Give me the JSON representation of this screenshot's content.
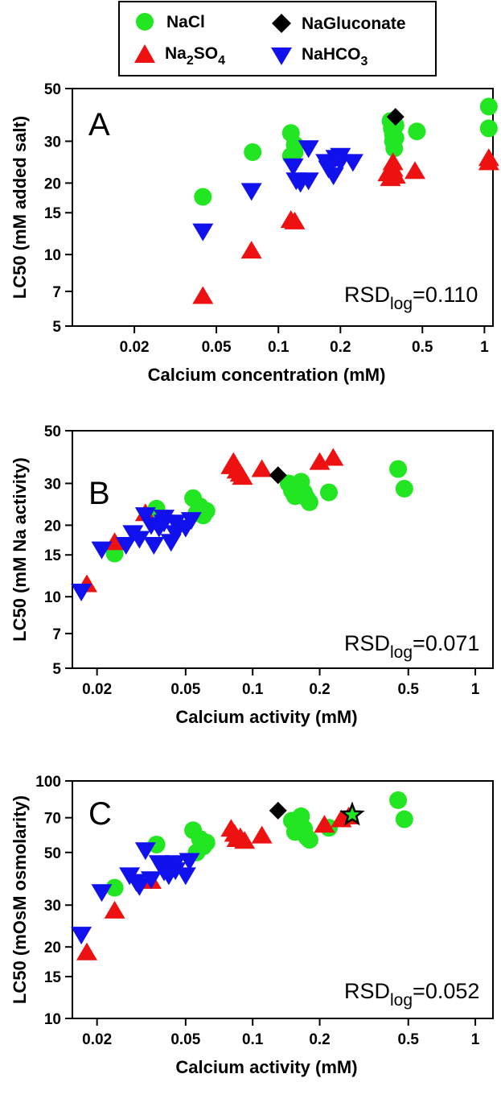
{
  "legend": {
    "entries": [
      {
        "key": "nacl",
        "label": "NaCl",
        "color": "#22e622",
        "marker": "circle"
      },
      {
        "key": "na2so4",
        "label_parts": [
          "Na",
          "2",
          "SO",
          "4"
        ],
        "color": "#ee1111",
        "marker": "triangle-up"
      },
      {
        "key": "nagluconate",
        "label": "NaGluconate",
        "color": "#000000",
        "marker": "diamond"
      },
      {
        "key": "nahco3",
        "label_parts": [
          "NaHCO",
          "3"
        ],
        "color": "#1111ee",
        "marker": "triangle-down"
      }
    ]
  },
  "chart_data": [
    {
      "type": "scatter",
      "panel_letter": "A",
      "xlabel": "Calcium concentration (mM)",
      "ylabel": "LC50 (mM added salt)",
      "x_scale": "log",
      "y_scale": "log",
      "xlim": [
        0.01,
        1.1
      ],
      "ylim": [
        5,
        50
      ],
      "x_ticks": [
        "0.02",
        "0.05",
        "0.1",
        "0.2",
        "0.5",
        "1"
      ],
      "y_ticks": [
        "5",
        "7",
        "10",
        "15",
        "20",
        "30",
        "50"
      ],
      "annotation": {
        "base": "RSD",
        "sub": "log",
        "value": "=0.110"
      },
      "series": [
        {
          "name": "NaCl",
          "marker": "circle",
          "color": "#22e622",
          "points": [
            [
              0.043,
              17.5
            ],
            [
              0.075,
              27
            ],
            [
              0.115,
              26
            ],
            [
              0.115,
              32.5
            ],
            [
              0.12,
              29
            ],
            [
              0.12,
              27
            ],
            [
              0.35,
              36.5
            ],
            [
              0.355,
              34
            ],
            [
              0.36,
              32
            ],
            [
              0.36,
              30
            ],
            [
              0.365,
              28
            ],
            [
              0.37,
              31
            ],
            [
              0.37,
              35
            ],
            [
              0.47,
              33
            ],
            [
              1.05,
              42
            ],
            [
              1.05,
              34
            ]
          ]
        },
        {
          "name": "Na2SO4",
          "marker": "triangle-up",
          "color": "#ee1111",
          "points": [
            [
              0.043,
              6.7
            ],
            [
              0.074,
              10.4
            ],
            [
              0.115,
              14
            ],
            [
              0.12,
              13.8
            ],
            [
              0.34,
              22
            ],
            [
              0.35,
              21
            ],
            [
              0.36,
              23
            ],
            [
              0.36,
              24.5
            ],
            [
              0.37,
              21.5
            ],
            [
              0.46,
              22.5
            ],
            [
              1.05,
              25.5
            ],
            [
              1.05,
              24.5
            ]
          ]
        },
        {
          "name": "NaGluconate",
          "marker": "diamond",
          "color": "#000000",
          "points": [
            [
              0.37,
              38
            ]
          ]
        },
        {
          "name": "NaHCO3",
          "marker": "triangle-down",
          "color": "#1111ee",
          "points": [
            [
              0.043,
              12.5
            ],
            [
              0.074,
              18.5
            ],
            [
              0.118,
              23.5
            ],
            [
              0.122,
              20.5
            ],
            [
              0.128,
              20
            ],
            [
              0.14,
              20.5
            ],
            [
              0.14,
              28
            ],
            [
              0.17,
              24.5
            ],
            [
              0.175,
              23
            ],
            [
              0.185,
              21.5
            ],
            [
              0.19,
              25.5
            ],
            [
              0.2,
              26
            ],
            [
              0.2,
              24.5
            ],
            [
              0.23,
              24.5
            ]
          ]
        }
      ]
    },
    {
      "type": "scatter",
      "panel_letter": "B",
      "xlabel": "Calcium activity (mM)",
      "ylabel": "LC50 (mM Na activity)",
      "x_scale": "log",
      "y_scale": "log",
      "xlim": [
        0.0155,
        1.2
      ],
      "ylim": [
        5,
        50
      ],
      "x_ticks": [
        "0.02",
        "0.05",
        "0.1",
        "0.2",
        "0.5",
        "1"
      ],
      "y_ticks": [
        "5",
        "7",
        "10",
        "15",
        "20",
        "30",
        "50"
      ],
      "annotation": {
        "base": "RSD",
        "sub": "log",
        "value": "=0.071"
      },
      "series": [
        {
          "name": "NaCl",
          "marker": "circle",
          "color": "#22e622",
          "points": [
            [
              0.024,
              15.2
            ],
            [
              0.037,
              23.5
            ],
            [
              0.054,
              26
            ],
            [
              0.056,
              22.5
            ],
            [
              0.058,
              24
            ],
            [
              0.06,
              22
            ],
            [
              0.062,
              23
            ],
            [
              0.145,
              30
            ],
            [
              0.15,
              28
            ],
            [
              0.155,
              26.5
            ],
            [
              0.16,
              29
            ],
            [
              0.165,
              30.5
            ],
            [
              0.17,
              27.5
            ],
            [
              0.175,
              26
            ],
            [
              0.18,
              25
            ],
            [
              0.22,
              27.5
            ],
            [
              0.45,
              34.5
            ],
            [
              0.48,
              28.5
            ]
          ]
        },
        {
          "name": "Na2SO4",
          "marker": "triangle-up",
          "color": "#ee1111",
          "points": [
            [
              0.018,
              11.3
            ],
            [
              0.024,
              17
            ],
            [
              0.033,
              22.5
            ],
            [
              0.08,
              35.5
            ],
            [
              0.082,
              37
            ],
            [
              0.085,
              34
            ],
            [
              0.088,
              33
            ],
            [
              0.09,
              32
            ],
            [
              0.11,
              34.5
            ],
            [
              0.2,
              37
            ],
            [
              0.23,
              38.5
            ]
          ]
        },
        {
          "name": "NaGluconate",
          "marker": "diamond",
          "color": "#000000",
          "points": [
            [
              0.13,
              32.5
            ]
          ]
        },
        {
          "name": "NaHCO3",
          "marker": "triangle-down",
          "color": "#1111ee",
          "points": [
            [
              0.017,
              10.5
            ],
            [
              0.021,
              15.8
            ],
            [
              0.027,
              16.5
            ],
            [
              0.029,
              18.5
            ],
            [
              0.031,
              17.5
            ],
            [
              0.033,
              22
            ],
            [
              0.035,
              20
            ],
            [
              0.036,
              16.5
            ],
            [
              0.038,
              19.5
            ],
            [
              0.04,
              20.5
            ],
            [
              0.04,
              21.5
            ],
            [
              0.043,
              17
            ],
            [
              0.045,
              18.5
            ],
            [
              0.045,
              20.5
            ],
            [
              0.05,
              19.5
            ],
            [
              0.053,
              21
            ]
          ]
        }
      ]
    },
    {
      "type": "scatter",
      "panel_letter": "C",
      "xlabel": "Calcium activity (mM)",
      "ylabel": "LC50 (mOsM osmolarity)",
      "x_scale": "log",
      "y_scale": "log",
      "xlim": [
        0.0155,
        1.2
      ],
      "ylim": [
        10,
        100
      ],
      "x_ticks": [
        "0.02",
        "0.05",
        "0.1",
        "0.2",
        "0.5",
        "1"
      ],
      "y_ticks": [
        "10",
        "15",
        "20",
        "30",
        "50",
        "70",
        "100"
      ],
      "annotation": {
        "base": "RSD",
        "sub": "log",
        "value": "=0.052"
      },
      "series": [
        {
          "name": "NaCl",
          "marker": "circle",
          "color": "#22e622",
          "points": [
            [
              0.024,
              35.5
            ],
            [
              0.037,
              54
            ],
            [
              0.054,
              62
            ],
            [
              0.056,
              50
            ],
            [
              0.058,
              57
            ],
            [
              0.06,
              53
            ],
            [
              0.062,
              55
            ],
            [
              0.15,
              68
            ],
            [
              0.155,
              61
            ],
            [
              0.16,
              65
            ],
            [
              0.165,
              71
            ],
            [
              0.17,
              63
            ],
            [
              0.175,
              58
            ],
            [
              0.18,
              56.5
            ],
            [
              0.22,
              63.5
            ],
            [
              0.45,
              83
            ],
            [
              0.48,
              69
            ]
          ]
        },
        {
          "name": "Na2SO4",
          "marker": "triangle-up",
          "color": "#ee1111",
          "points": [
            [
              0.018,
              19
            ],
            [
              0.024,
              28.5
            ],
            [
              0.035,
              38
            ],
            [
              0.08,
              63
            ],
            [
              0.083,
              60
            ],
            [
              0.085,
              57
            ],
            [
              0.088,
              58
            ],
            [
              0.092,
              56
            ],
            [
              0.11,
              59
            ],
            [
              0.21,
              65.5
            ],
            [
              0.25,
              69
            ],
            [
              0.27,
              71
            ]
          ]
        },
        {
          "name": "NaGluconate",
          "marker": "diamond",
          "color": "#000000",
          "points": [
            [
              0.13,
              75
            ]
          ]
        },
        {
          "name": "Star",
          "marker": "star",
          "color": "#000000",
          "fill": "#22e622",
          "points": [
            [
              0.28,
              72
            ]
          ]
        },
        {
          "name": "NaHCO3",
          "marker": "triangle-down",
          "color": "#1111ee",
          "points": [
            [
              0.017,
              22.5
            ],
            [
              0.021,
              34
            ],
            [
              0.028,
              40
            ],
            [
              0.03,
              37.5
            ],
            [
              0.031,
              36
            ],
            [
              0.033,
              51
            ],
            [
              0.035,
              38.5
            ],
            [
              0.038,
              45
            ],
            [
              0.04,
              44
            ],
            [
              0.04,
              41.5
            ],
            [
              0.042,
              40
            ],
            [
              0.045,
              42
            ],
            [
              0.045,
              45
            ],
            [
              0.05,
              40
            ],
            [
              0.052,
              46
            ]
          ]
        }
      ]
    }
  ]
}
